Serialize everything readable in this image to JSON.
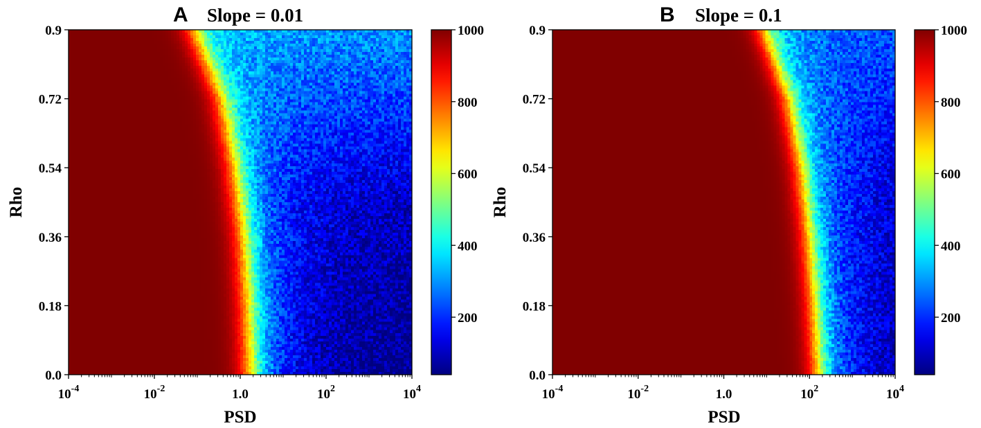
{
  "chart_data": [
    {
      "type": "heatmap",
      "panel_letter": "A",
      "title": "Slope = 0.01",
      "xlabel": "PSD",
      "ylabel": "Rho",
      "x_scale": "log",
      "xlim": [
        0.0001,
        10000
      ],
      "ylim": [
        0.0,
        0.9
      ],
      "x_ticks": [
        0.0001,
        0.01,
        1.0,
        100,
        10000
      ],
      "x_tick_labels": [
        {
          "base": "10",
          "exp": "-4"
        },
        {
          "base": "10",
          "exp": "-2"
        },
        {
          "base": "1.0",
          "exp": ""
        },
        {
          "base": "10",
          "exp": "2"
        },
        {
          "base": "10",
          "exp": "4"
        }
      ],
      "y_ticks": [
        0.0,
        0.18,
        0.36,
        0.54,
        0.72,
        0.9
      ],
      "y_tick_labels": [
        "0.0",
        "0.18",
        "0.36",
        "0.54",
        "0.72",
        "0.9"
      ],
      "colormap": "jet",
      "colorbar": {
        "range": [
          40,
          1000
        ],
        "ticks": [
          200,
          400,
          600,
          800,
          1000
        ],
        "tick_labels": [
          "200",
          "400",
          "600",
          "800",
          "1000"
        ]
      },
      "value_model": {
        "saturation_value": 1000,
        "transition_psd_at_rho": [
          {
            "rho": 0.0,
            "psd": 1.6
          },
          {
            "rho": 0.18,
            "psd": 1.4
          },
          {
            "rho": 0.36,
            "psd": 1.1
          },
          {
            "rho": 0.54,
            "psd": 0.7
          },
          {
            "rho": 0.72,
            "psd": 0.35
          },
          {
            "rho": 0.9,
            "psd": 0.08
          }
        ],
        "transition_width_decades": 0.5,
        "high_psd_floor": [
          {
            "rho": 0.0,
            "value": 40
          },
          {
            "rho": 0.45,
            "value": 100
          },
          {
            "rho": 0.9,
            "value": 300
          }
        ]
      }
    },
    {
      "type": "heatmap",
      "panel_letter": "B",
      "title": "Slope = 0.1",
      "xlabel": "PSD",
      "ylabel": "Rho",
      "x_scale": "log",
      "xlim": [
        0.0001,
        10000
      ],
      "ylim": [
        0.0,
        0.9
      ],
      "x_ticks": [
        0.0001,
        0.01,
        1.0,
        100,
        10000
      ],
      "x_tick_labels": [
        {
          "base": "10",
          "exp": "-4"
        },
        {
          "base": "10",
          "exp": "-2"
        },
        {
          "base": "1.0",
          "exp": ""
        },
        {
          "base": "10",
          "exp": "2"
        },
        {
          "base": "10",
          "exp": "4"
        }
      ],
      "y_ticks": [
        0.0,
        0.18,
        0.36,
        0.54,
        0.72,
        0.9
      ],
      "y_tick_labels": [
        "0.0",
        "0.18",
        "0.36",
        "0.54",
        "0.72",
        "0.9"
      ],
      "colormap": "jet",
      "colorbar": {
        "range": [
          40,
          1000
        ],
        "ticks": [
          200,
          400,
          600,
          800,
          1000
        ],
        "tick_labels": [
          "200",
          "400",
          "600",
          "800",
          "1000"
        ]
      },
      "value_model": {
        "saturation_value": 1000,
        "transition_psd_at_rho": [
          {
            "rho": 0.0,
            "psd": 150
          },
          {
            "rho": 0.18,
            "psd": 120
          },
          {
            "rho": 0.36,
            "psd": 90
          },
          {
            "rho": 0.54,
            "psd": 60
          },
          {
            "rho": 0.72,
            "psd": 30
          },
          {
            "rho": 0.9,
            "psd": 8
          }
        ],
        "transition_width_decades": 0.45,
        "high_psd_floor": [
          {
            "rho": 0.0,
            "value": 40
          },
          {
            "rho": 0.45,
            "value": 90
          },
          {
            "rho": 0.9,
            "value": 230
          }
        ]
      }
    }
  ]
}
